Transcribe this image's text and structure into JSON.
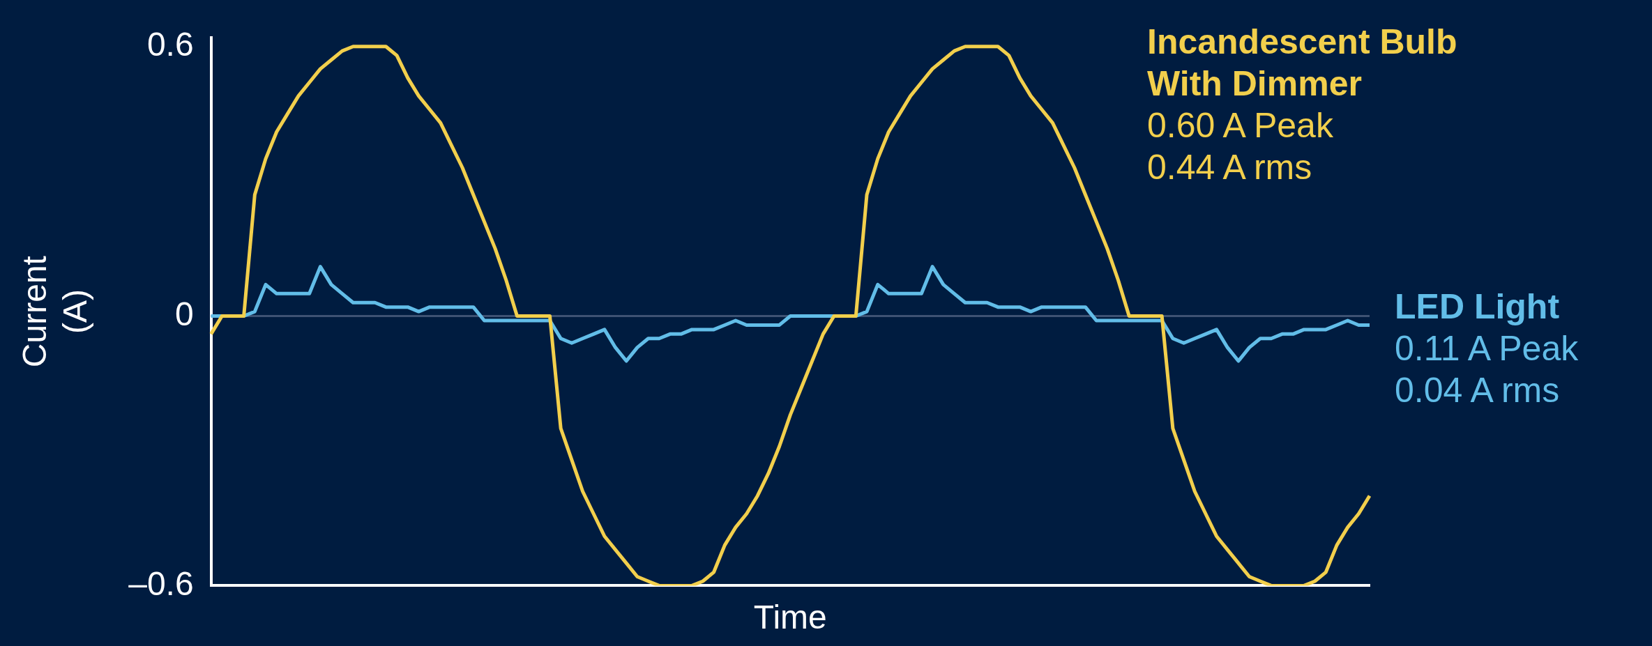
{
  "chart_data": {
    "type": "line",
    "xlabel": "Time",
    "ylabel": "Current (A)",
    "categories": [
      null,
      null,
      null,
      null,
      null,
      null,
      null,
      null,
      null,
      null,
      null,
      null,
      null,
      null,
      null,
      null,
      null,
      null,
      null,
      null,
      null,
      null,
      null,
      null,
      null,
      null,
      null,
      null,
      null,
      null,
      null,
      null,
      null,
      null,
      null,
      null,
      null,
      null,
      null,
      null,
      null,
      null,
      null,
      null,
      null,
      null,
      null,
      null,
      null,
      null,
      null,
      null,
      null,
      null,
      null,
      null,
      null,
      null,
      null,
      null,
      null,
      null,
      null,
      null,
      null,
      null,
      null,
      null,
      null,
      null,
      null,
      null,
      null,
      null,
      null,
      null,
      null,
      null,
      null,
      null,
      null,
      null,
      null,
      null,
      null,
      null,
      null,
      null,
      null,
      null,
      null,
      null,
      null,
      null,
      null,
      null,
      null,
      null,
      null,
      null,
      null,
      null,
      null,
      null,
      null,
      null,
      null
    ],
    "series": [
      {
        "name": "Incandescent Bulb With Dimmer",
        "color": "#f2cf4c",
        "values": [
          -0.04,
          0,
          0,
          0,
          0.27,
          0.35,
          0.41,
          0.45,
          0.49,
          0.52,
          0.55,
          0.57,
          0.59,
          0.6,
          0.6,
          0.6,
          0.6,
          0.58,
          0.53,
          0.49,
          0.46,
          0.43,
          0.38,
          0.33,
          0.27,
          0.21,
          0.15,
          0.08,
          0,
          0,
          0,
          0,
          -0.25,
          -0.32,
          -0.39,
          -0.44,
          -0.49,
          -0.52,
          -0.55,
          -0.58,
          -0.59,
          -0.6,
          -0.6,
          -0.6,
          -0.6,
          -0.59,
          -0.57,
          -0.51,
          -0.47,
          -0.44,
          -0.4,
          -0.35,
          -0.29,
          -0.22,
          -0.16,
          -0.1,
          -0.04,
          0,
          0,
          0,
          0.27,
          0.35,
          0.41,
          0.45,
          0.49,
          0.52,
          0.55,
          0.57,
          0.59,
          0.6,
          0.6,
          0.6,
          0.6,
          0.58,
          0.53,
          0.49,
          0.46,
          0.43,
          0.38,
          0.33,
          0.27,
          0.21,
          0.15,
          0.08,
          0,
          0,
          0,
          0,
          -0.25,
          -0.32,
          -0.39,
          -0.44,
          -0.49,
          -0.52,
          -0.55,
          -0.58,
          -0.59,
          -0.6,
          -0.6,
          -0.6,
          -0.6,
          -0.59,
          -0.57,
          -0.51,
          -0.47,
          -0.44,
          -0.4
        ]
      },
      {
        "name": "LED Light",
        "color": "#62bde8",
        "values": [
          0,
          0,
          0,
          0,
          0.01,
          0.07,
          0.05,
          0.05,
          0.05,
          0.05,
          0.11,
          0.07,
          0.05,
          0.03,
          0.03,
          0.03,
          0.02,
          0.02,
          0.02,
          0.01,
          0.02,
          0.02,
          0.02,
          0.02,
          0.02,
          -0.01,
          -0.01,
          -0.01,
          -0.01,
          -0.01,
          -0.01,
          -0.01,
          -0.05,
          -0.06,
          -0.05,
          -0.04,
          -0.03,
          -0.07,
          -0.1,
          -0.07,
          -0.05,
          -0.05,
          -0.04,
          -0.04,
          -0.03,
          -0.03,
          -0.03,
          -0.02,
          -0.01,
          -0.02,
          -0.02,
          -0.02,
          -0.02,
          0,
          0,
          0,
          0,
          0,
          0,
          0,
          0.01,
          0.07,
          0.05,
          0.05,
          0.05,
          0.05,
          0.11,
          0.07,
          0.05,
          0.03,
          0.03,
          0.03,
          0.02,
          0.02,
          0.02,
          0.01,
          0.02,
          0.02,
          0.02,
          0.02,
          0.02,
          -0.01,
          -0.01,
          -0.01,
          -0.01,
          -0.01,
          -0.01,
          -0.01,
          -0.05,
          -0.06,
          -0.05,
          -0.04,
          -0.03,
          -0.07,
          -0.1,
          -0.07,
          -0.05,
          -0.05,
          -0.04,
          -0.04,
          -0.03,
          -0.03,
          -0.03,
          -0.02,
          -0.01,
          -0.02,
          -0.02
        ]
      }
    ],
    "ylim": [
      -0.6,
      0.62
    ],
    "yticks": [
      {
        "value": -0.6,
        "label": "–0.6"
      },
      0,
      0.6
    ],
    "ref_lines": [
      {
        "axis": "y",
        "value": 0,
        "color": "#3e5273"
      }
    ],
    "annotations": [
      "0.60 A Peak",
      "0.44 A rms",
      "0.11 A Peak",
      "0.04 A rms"
    ],
    "grid": false
  }
}
